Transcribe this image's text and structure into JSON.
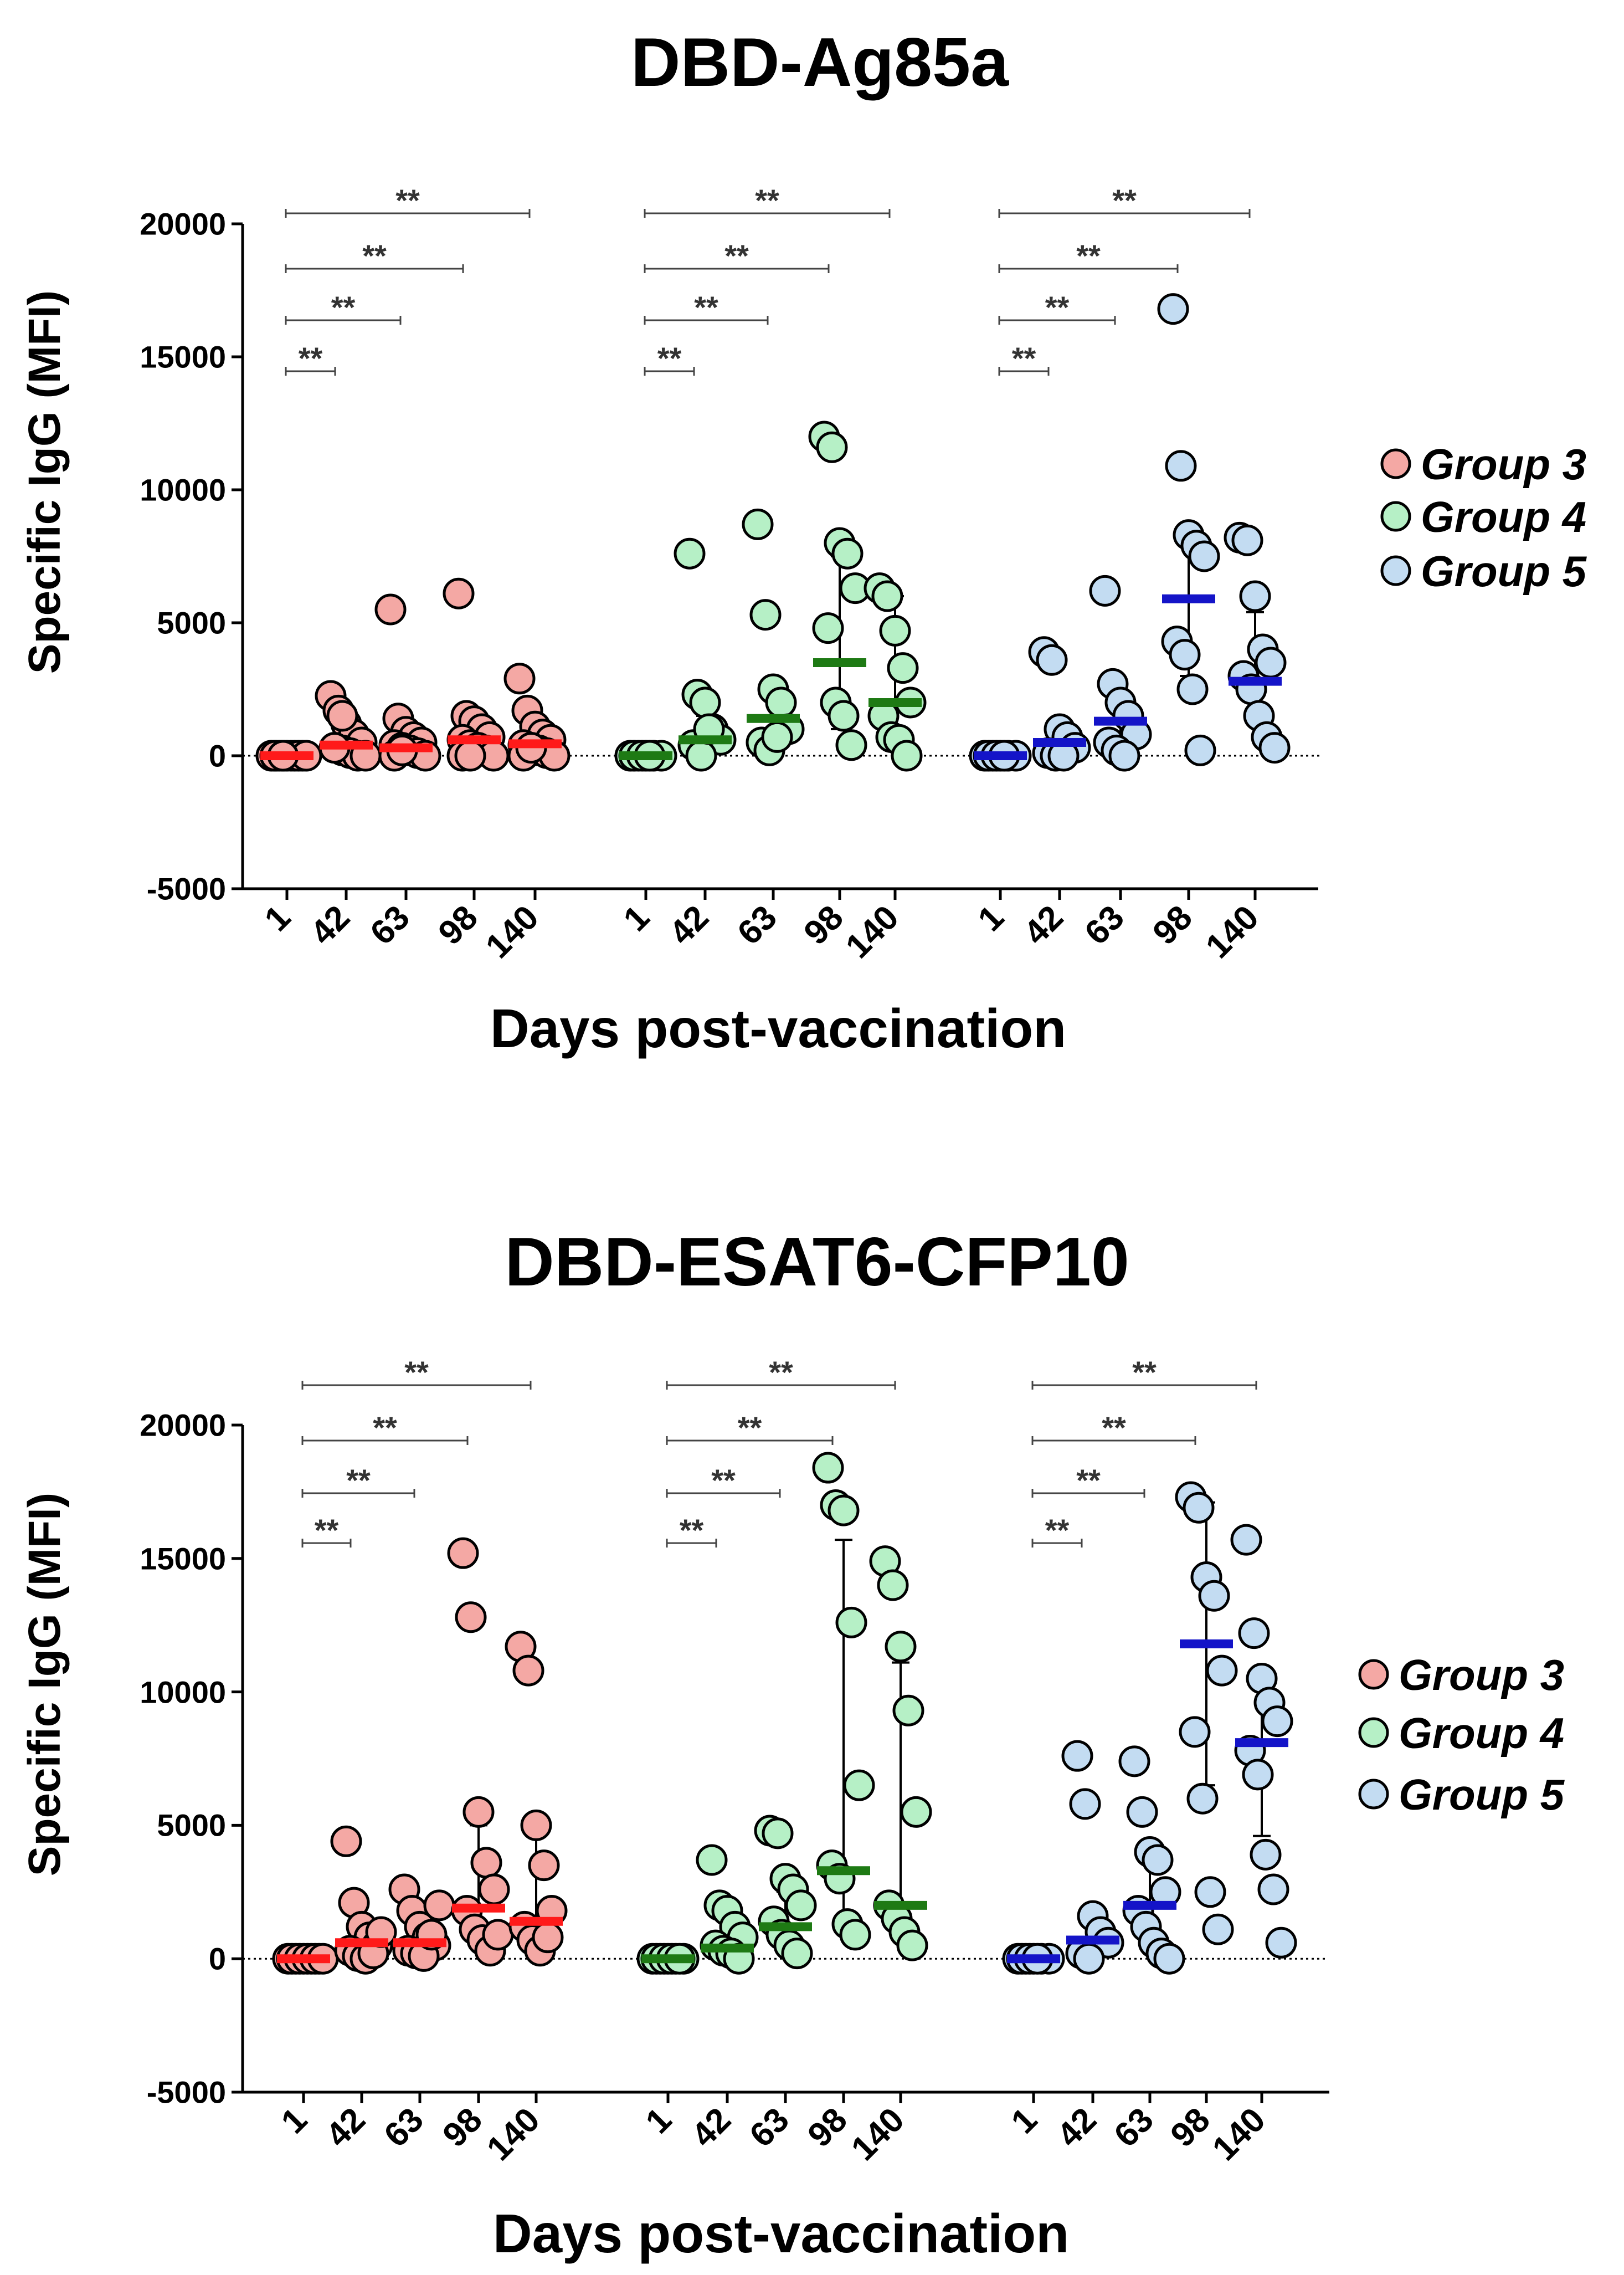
{
  "chart_data": [
    {
      "type": "scatter",
      "title": "DBD-Ag85a",
      "ylabel": "Specific IgG (MFI)",
      "xlabel": "Days post-vaccination",
      "ylim": [
        -5000,
        20000
      ],
      "yticks": [
        "20000",
        "15000",
        "10000",
        "5000",
        "0",
        "-5000"
      ],
      "ytick_values": [
        20000,
        15000,
        10000,
        5000,
        0,
        -5000
      ],
      "categories": [
        "1",
        "42",
        "63",
        "98",
        "140"
      ],
      "significance_label": "**",
      "legend": [
        "Group 3",
        "Group 4",
        "Group 5"
      ],
      "groups": [
        {
          "name": "Group 3",
          "fill": "#f4a8a4",
          "mean_color": "#ff1a1a",
          "means": [
            0,
            400,
            300,
            600,
            450
          ],
          "errors": [
            [
              0,
              0
            ],
            [
              100,
              900
            ],
            [
              0,
              800
            ],
            [
              0,
              1400
            ],
            [
              0,
              1000
            ]
          ],
          "points": [
            [
              0,
              0,
              0,
              0,
              0,
              0,
              0,
              0,
              0,
              0,
              0,
              0
            ],
            [
              2250,
              1700,
              1200,
              800,
              500,
              300,
              200,
              100,
              0,
              0,
              300,
              1500
            ],
            [
              5500,
              1400,
              900,
              700,
              500,
              400,
              300,
              200,
              100,
              0,
              0,
              200
            ],
            [
              6100,
              1500,
              1300,
              1000,
              700,
              600,
              400,
              300,
              200,
              0,
              0,
              0
            ],
            [
              2900,
              1700,
              1100,
              800,
              600,
              400,
              300,
              200,
              100,
              0,
              0,
              300
            ]
          ]
        },
        {
          "name": "Group 4",
          "fill": "#b6f0c6",
          "mean_color": "#1e7a14",
          "means": [
            0,
            600,
            1400,
            3500,
            2000
          ],
          "errors": [
            [
              0,
              0
            ],
            [
              0,
              1500
            ],
            [
              500,
              2500
            ],
            [
              1000,
              7500
            ],
            [
              500,
              6000
            ]
          ],
          "points": [
            [
              0,
              0,
              0,
              0,
              0,
              0,
              0,
              0
            ],
            [
              7600,
              2300,
              2000,
              1000,
              600,
              400,
              0,
              1000
            ],
            [
              8700,
              5300,
              2500,
              2000,
              1000,
              500,
              200,
              700
            ],
            [
              12000,
              11600,
              8000,
              7600,
              6300,
              4800,
              2000,
              1500,
              400
            ],
            [
              6300,
              6000,
              4700,
              3300,
              2000,
              1500,
              700,
              600,
              0
            ]
          ]
        },
        {
          "name": "Group 5",
          "fill": "#c3dcf2",
          "mean_color": "#1414c8",
          "means": [
            0,
            500,
            1300,
            5900,
            2800
          ],
          "errors": [
            [
              0,
              0
            ],
            [
              200,
              1000
            ],
            [
              300,
              2000
            ],
            [
              3000,
              8200
            ],
            [
              1200,
              5400
            ]
          ],
          "points": [
            [
              0,
              0,
              0,
              0,
              0,
              0,
              0,
              0
            ],
            [
              3900,
              3600,
              1000,
              700,
              300,
              100,
              0,
              0
            ],
            [
              6200,
              2700,
              2000,
              1500,
              800,
              500,
              200,
              0
            ],
            [
              16800,
              10900,
              8300,
              7900,
              7500,
              4300,
              3800,
              2500,
              200
            ],
            [
              8200,
              8100,
              6000,
              4000,
              3500,
              3000,
              2500,
              1500,
              700,
              300
            ]
          ]
        }
      ]
    },
    {
      "type": "scatter",
      "title": "DBD-ESAT6-CFP10",
      "ylabel": "Specific IgG (MFI)",
      "xlabel": "Days post-vaccination",
      "ylim": [
        -5000,
        20000
      ],
      "yticks": [
        "20000",
        "15000",
        "10000",
        "5000",
        "0",
        "-5000"
      ],
      "ytick_values": [
        20000,
        15000,
        10000,
        5000,
        0,
        -5000
      ],
      "categories": [
        "1",
        "42",
        "63",
        "98",
        "140"
      ],
      "significance_label": "**",
      "legend": [
        "Group 3",
        "Group 4",
        "Group 5"
      ],
      "groups": [
        {
          "name": "Group 3",
          "fill": "#f4a8a4",
          "mean_color": "#ff1a1a",
          "means": [
            0,
            600,
            600,
            1900,
            1400
          ],
          "errors": [
            [
              0,
              0
            ],
            [
              100,
              1200
            ],
            [
              100,
              1300
            ],
            [
              800,
              5000
            ],
            [
              600,
              4600
            ]
          ],
          "points": [
            [
              0,
              0,
              0,
              0,
              0,
              0,
              0,
              0,
              0,
              0
            ],
            [
              4400,
              2100,
              1200,
              800,
              500,
              300,
              100,
              0,
              200,
              1000
            ],
            [
              2600,
              1800,
              1200,
              800,
              500,
              300,
              200,
              100,
              900,
              2000
            ],
            [
              15200,
              12800,
              5500,
              3600,
              2600,
              1800,
              1100,
              700,
              300,
              900
            ],
            [
              11700,
              10800,
              5000,
              3500,
              1800,
              1200,
              700,
              300,
              800
            ]
          ]
        },
        {
          "name": "Group 4",
          "fill": "#b6f0c6",
          "mean_color": "#1e7a14",
          "means": [
            0,
            400,
            1200,
            3300,
            2000
          ],
          "errors": [
            [
              0,
              0
            ],
            [
              0,
              1500
            ],
            [
              300,
              2500
            ],
            [
              1000,
              15700
            ],
            [
              1000,
              11100
            ]
          ],
          "points": [
            [
              0,
              0,
              0,
              0,
              0,
              0,
              0,
              0,
              0
            ],
            [
              3700,
              2000,
              1800,
              1200,
              800,
              500,
              300,
              200,
              0
            ],
            [
              4800,
              4700,
              3000,
              2600,
              2000,
              1400,
              900,
              500,
              200
            ],
            [
              18400,
              17000,
              16800,
              12600,
              6500,
              3500,
              3000,
              1300,
              900
            ],
            [
              14900,
              14000,
              11700,
              9300,
              5500,
              2000,
              1500,
              1000,
              500
            ]
          ]
        },
        {
          "name": "Group 5",
          "fill": "#c3dcf2",
          "mean_color": "#1414c8",
          "means": [
            0,
            700,
            2000,
            11800,
            8100
          ],
          "errors": [
            [
              0,
              0
            ],
            [
              100,
              1600
            ],
            [
              300,
              4200
            ],
            [
              6500,
              17100
            ],
            [
              4600,
              10100
            ]
          ],
          "points": [
            [
              0,
              0,
              0,
              0,
              0,
              0,
              0,
              0
            ],
            [
              7600,
              5800,
              1600,
              1000,
              600,
              200,
              0
            ],
            [
              7400,
              5500,
              4000,
              3700,
              2500,
              1800,
              1200,
              600,
              200,
              0
            ],
            [
              17300,
              16900,
              14300,
              13600,
              10800,
              8500,
              6000,
              2500,
              1100
            ],
            [
              15700,
              12200,
              10500,
              9600,
              8900,
              7800,
              6900,
              3900,
              2600,
              600
            ]
          ]
        }
      ]
    }
  ]
}
